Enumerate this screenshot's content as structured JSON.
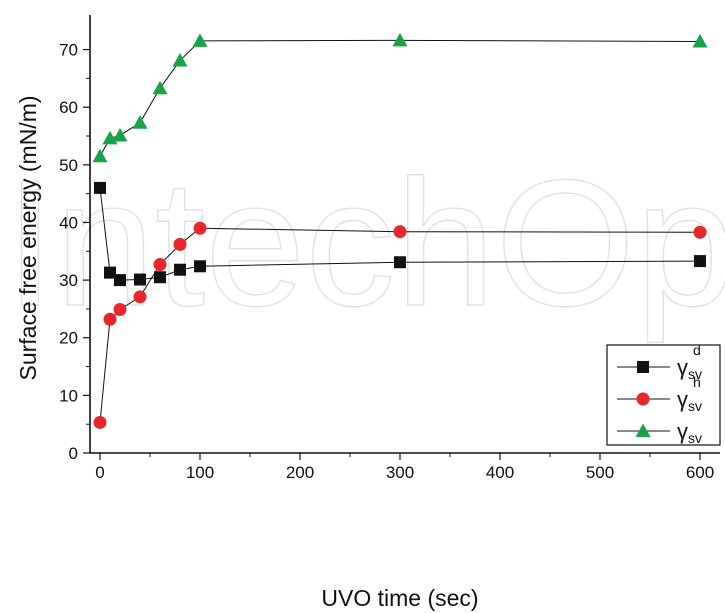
{
  "watermark": "IntechOpen",
  "chart_data": {
    "type": "scatter",
    "xlabel": "UVO  time (sec)",
    "ylabel": "Surface free energy (mN/m)",
    "xlim": [
      -10,
      620
    ],
    "ylim": [
      0,
      76
    ],
    "xticks": [
      0,
      100,
      200,
      300,
      400,
      500,
      600
    ],
    "yticks": [
      0,
      10,
      20,
      30,
      40,
      50,
      60,
      70
    ],
    "x_minor_step": 50,
    "y_minor_step": 5,
    "grid": false,
    "legend_position": "bottom-right",
    "series": [
      {
        "symbol": "γ",
        "sub": "sv",
        "sup": "d",
        "marker": "square",
        "color": "#111111",
        "x": [
          0,
          10,
          20,
          40,
          60,
          80,
          100,
          300,
          600
        ],
        "y": [
          46,
          31.3,
          30,
          30.1,
          30.5,
          31.8,
          32.4,
          33.1,
          33.3
        ]
      },
      {
        "symbol": "γ",
        "sub": "sv",
        "sup": "h",
        "marker": "circle",
        "color": "#e8262b",
        "x": [
          0,
          10,
          20,
          40,
          60,
          80,
          100,
          300,
          600
        ],
        "y": [
          5.3,
          23.2,
          24.9,
          27.1,
          32.7,
          36.2,
          39,
          38.4,
          38.3
        ]
      },
      {
        "symbol": "γ",
        "sub": "sv",
        "sup": "",
        "marker": "triangle",
        "color": "#17a34a",
        "x": [
          0,
          10,
          20,
          40,
          60,
          80,
          100,
          300,
          600
        ],
        "y": [
          51.5,
          54.6,
          55.1,
          57.3,
          63.3,
          68.1,
          71.5,
          71.6,
          71.4
        ]
      }
    ]
  }
}
